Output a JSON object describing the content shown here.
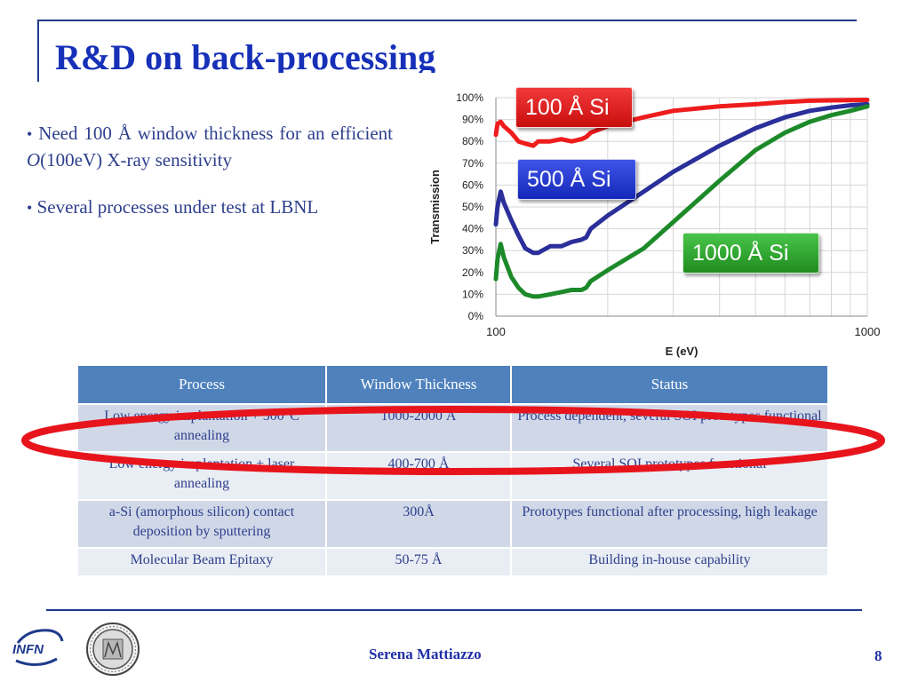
{
  "slide": {
    "title": "R&D on back-processing",
    "bullets": [
      {
        "pre": "Need 100 Å window thickness for an efficient ",
        "italic": "O",
        "post": "(100eV) X-ray sensitivity"
      },
      {
        "pre": "Several processes under test at LBNL",
        "italic": "",
        "post": ""
      }
    ],
    "footer_author": "Serena Mattiazzo",
    "page_number": "8",
    "logo_text": "INFN"
  },
  "chart_data": {
    "type": "line",
    "xlabel": "E (eV)",
    "ylabel": "Transmission",
    "x_scale": "log",
    "xlim": [
      100,
      1000
    ],
    "ylim": [
      0,
      100
    ],
    "x_tick_labels": [
      "100",
      "1000"
    ],
    "y_tick_labels": [
      "0%",
      "10%",
      "20%",
      "30%",
      "40%",
      "50%",
      "60%",
      "70%",
      "80%",
      "90%",
      "100%"
    ],
    "grid": true,
    "series": [
      {
        "name": "100 Å Si",
        "color": "#ee1c1c",
        "x": [
          100,
          101,
          103,
          105,
          110,
          115,
          120,
          126,
          130,
          140,
          150,
          160,
          170,
          175,
          180,
          200,
          250,
          300,
          400,
          500,
          600,
          700,
          800,
          900,
          1000
        ],
        "y": [
          83,
          88,
          89,
          87,
          84,
          80,
          79,
          78,
          80,
          80,
          81,
          80,
          81,
          82,
          84,
          87,
          91,
          94,
          96,
          97,
          98,
          98.6,
          98.8,
          98.9,
          99
        ]
      },
      {
        "name": "500 Å Si",
        "color": "#2b2f9a",
        "x": [
          100,
          101,
          103,
          105,
          110,
          115,
          120,
          126,
          130,
          140,
          150,
          160,
          170,
          175,
          180,
          200,
          250,
          300,
          400,
          500,
          600,
          700,
          800,
          900,
          1000
        ],
        "y": [
          42,
          50,
          57,
          52,
          44,
          37,
          31,
          29,
          29,
          32,
          32,
          34,
          35,
          36,
          40,
          46,
          57,
          66,
          78,
          86,
          91,
          94,
          95.5,
          96.5,
          97
        ]
      },
      {
        "name": "1000 Å Si",
        "color": "#1d8a2a",
        "x": [
          100,
          101,
          103,
          105,
          110,
          115,
          120,
          126,
          130,
          140,
          150,
          160,
          170,
          175,
          180,
          200,
          250,
          300,
          400,
          500,
          600,
          700,
          800,
          900,
          1000
        ],
        "y": [
          17,
          26,
          33,
          27,
          18,
          13,
          10,
          9,
          9,
          10,
          11,
          12,
          12,
          13,
          16,
          21,
          31,
          43,
          62,
          76,
          84,
          89,
          92,
          94,
          96
        ]
      }
    ]
  },
  "table": {
    "headers": [
      "Process",
      "Window Thickness",
      "Status"
    ],
    "rows": [
      {
        "process": "Low energy implantation + 500°C annealing",
        "thickness": "1000-2000 Å",
        "status": "Process dependent, several SOI prototypes functional"
      },
      {
        "process": "Low energy implantation + laser annealing",
        "thickness": "400-700 Å",
        "status": "Several SOI prototypes functional"
      },
      {
        "process": "a-Si (amorphous silicon) contact deposition by sputtering",
        "thickness": "300Å",
        "status": "Prototypes functional after processing, high leakage"
      },
      {
        "process": "Molecular Beam Epitaxy",
        "thickness": "50-75 Å",
        "status": "Building in-house capability"
      }
    ]
  },
  "colors": {
    "title": "#1630b8",
    "text": "#2d3f8c",
    "header_bg": "#4f81bd",
    "highlight_ellipse": "#e8141c"
  }
}
